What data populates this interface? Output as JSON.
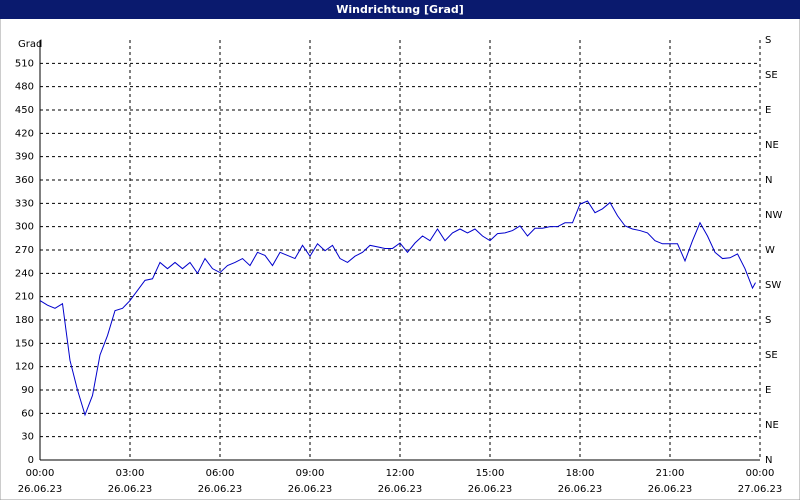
{
  "chart_data": {
    "type": "line",
    "title": "Windrichtung [Grad]",
    "ylabel": "Grad",
    "x": [
      0,
      0.25,
      0.5,
      0.75,
      1,
      1.25,
      1.5,
      1.75,
      2,
      2.25,
      2.5,
      2.75,
      3,
      3.25,
      3.5,
      3.75,
      4,
      4.25,
      4.5,
      4.75,
      5,
      5.25,
      5.5,
      5.75,
      6,
      6.25,
      6.5,
      6.75,
      7,
      7.25,
      7.5,
      7.75,
      8,
      8.25,
      8.5,
      8.75,
      9,
      9.25,
      9.5,
      9.75,
      10,
      10.25,
      10.5,
      10.75,
      11,
      11.25,
      11.5,
      11.75,
      12,
      12.25,
      12.5,
      12.75,
      13,
      13.25,
      13.5,
      13.75,
      14,
      14.25,
      14.5,
      14.75,
      15,
      15.25,
      15.5,
      15.75,
      16,
      16.25,
      16.5,
      16.75,
      17,
      17.25,
      17.5,
      17.75,
      18,
      18.25,
      18.5,
      18.75,
      19,
      19.25,
      19.5,
      19.75,
      20,
      20.25,
      20.5,
      20.75,
      21,
      21.25,
      21.5,
      21.75,
      22,
      22.25,
      22.5,
      22.75,
      23,
      23.25,
      23.5,
      23.75,
      23.85
    ],
    "series": [
      {
        "name": "Windrichtung",
        "color": "#0000cc",
        "values": [
          205,
          199,
          195,
          201,
          128,
          90,
          58,
          83,
          135,
          160,
          192,
          195,
          205,
          218,
          231,
          233,
          254,
          246,
          254,
          246,
          254,
          240,
          259,
          246,
          241,
          250,
          254,
          259,
          250,
          267,
          263,
          250,
          267,
          263,
          259,
          276,
          262,
          278,
          269,
          276,
          259,
          254,
          262,
          267,
          276,
          274,
          272,
          272,
          279,
          267,
          279,
          288,
          282,
          297,
          282,
          292,
          297,
          292,
          297,
          288,
          282,
          291,
          292,
          295,
          301,
          288,
          298,
          298,
          300,
          300,
          305,
          305,
          329,
          333,
          318,
          323,
          331,
          314,
          301,
          297,
          295,
          292,
          282,
          278,
          278,
          278,
          256,
          282,
          305,
          288,
          267,
          259,
          260,
          265,
          246,
          221,
          228
        ]
      }
    ],
    "xlim": [
      0,
      24
    ],
    "xticks": [
      {
        "value": 0,
        "label": "00:00",
        "date": "26.06.23"
      },
      {
        "value": 3,
        "label": "03:00",
        "date": "26.06.23"
      },
      {
        "value": 6,
        "label": "06:00",
        "date": "26.06.23"
      },
      {
        "value": 9,
        "label": "09:00",
        "date": "26.06.23"
      },
      {
        "value": 12,
        "label": "12:00",
        "date": "26.06.23"
      },
      {
        "value": 15,
        "label": "15:00",
        "date": "26.06.23"
      },
      {
        "value": 18,
        "label": "18:00",
        "date": "26.06.23"
      },
      {
        "value": 21,
        "label": "21:00",
        "date": "26.06.23"
      },
      {
        "value": 24,
        "label": "00:00",
        "date": "27.06.23"
      }
    ],
    "ylim": [
      0,
      540
    ],
    "yticks": [
      0,
      30,
      60,
      90,
      120,
      150,
      180,
      210,
      240,
      270,
      300,
      330,
      360,
      390,
      420,
      450,
      480,
      510
    ],
    "y2lim": [
      0,
      540
    ],
    "y2ticks": [
      {
        "value": 0,
        "label": "N"
      },
      {
        "value": 45,
        "label": "NE"
      },
      {
        "value": 90,
        "label": "E"
      },
      {
        "value": 135,
        "label": "SE"
      },
      {
        "value": 180,
        "label": "S"
      },
      {
        "value": 225,
        "label": "SW"
      },
      {
        "value": 270,
        "label": "W"
      },
      {
        "value": 315,
        "label": "NW"
      },
      {
        "value": 360,
        "label": "N"
      },
      {
        "value": 405,
        "label": "NE"
      },
      {
        "value": 450,
        "label": "E"
      },
      {
        "value": 495,
        "label": "SE"
      },
      {
        "value": 540,
        "label": "S"
      }
    ],
    "grid": true
  }
}
